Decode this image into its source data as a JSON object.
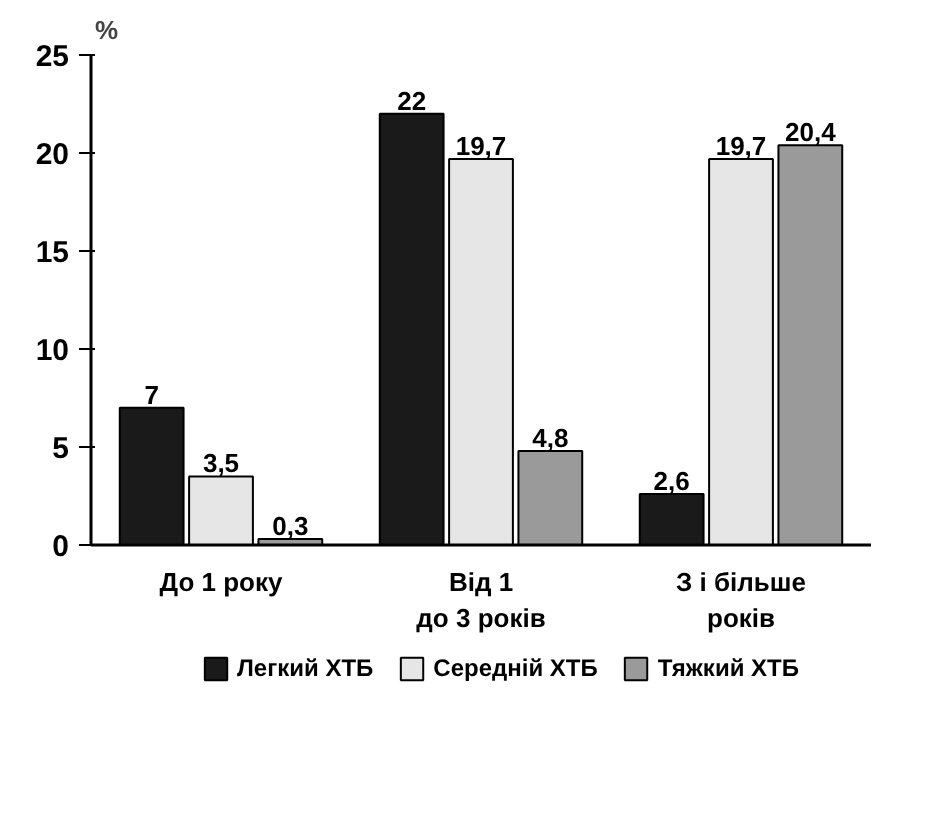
{
  "chart_data": {
    "type": "bar",
    "categories": [
      "До 1 року",
      "Від 1\nдо 3 років",
      "З і більше\nроків"
    ],
    "ylabel": "%",
    "ylim": [
      0,
      25
    ],
    "yticks": [
      0,
      5,
      10,
      15,
      20,
      25
    ],
    "series": [
      {
        "name": "Легкий ХТБ",
        "color": "#1a1a1a",
        "values": [
          7,
          22,
          2.6
        ],
        "value_labels": [
          "7",
          "22",
          "2,6"
        ]
      },
      {
        "name": "Середній ХТБ",
        "color": "#e6e6e6",
        "values": [
          3.5,
          19.7,
          19.7
        ],
        "value_labels": [
          "3,5",
          "19,7",
          "19,7"
        ]
      },
      {
        "name": "Тяжкий ХТБ",
        "color": "#9a9a9a",
        "values": [
          0.3,
          4.8,
          20.4
        ],
        "value_labels": [
          "0,3",
          "4,8",
          "20,4"
        ]
      }
    ],
    "grid": false,
    "legend": "bottom"
  }
}
